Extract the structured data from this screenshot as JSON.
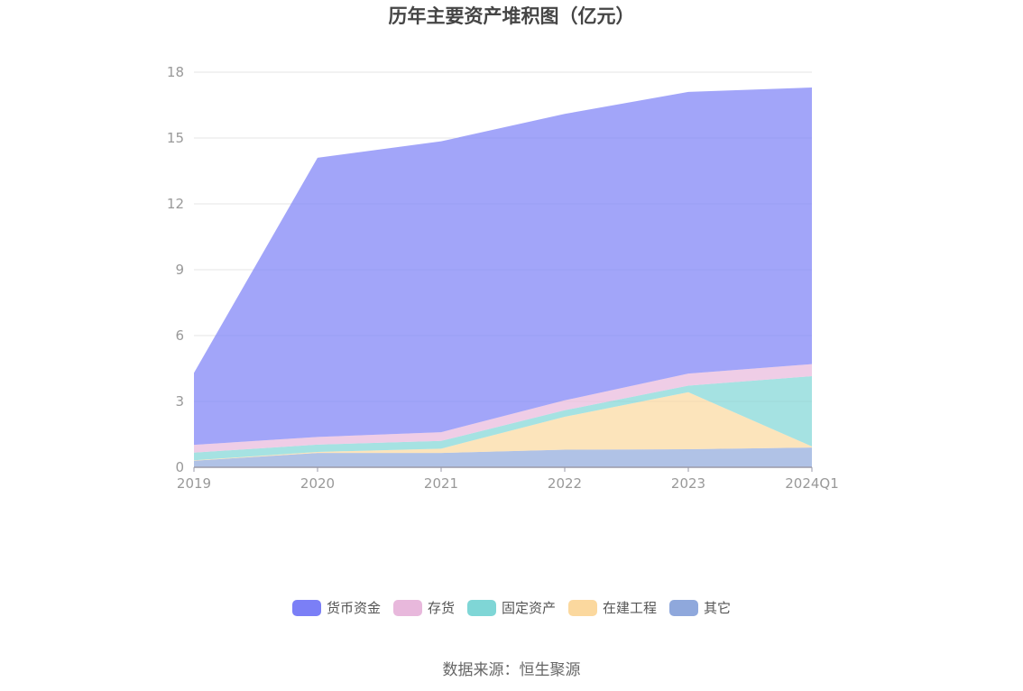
{
  "title": "历年主要资产堆积图（亿元）",
  "source": "数据来源：恒生聚源",
  "colors": {
    "货币资金": "#7b7ff6",
    "存货": "#e8b8dc",
    "固定资产": "#7fd6d6",
    "在建工程": "#fbd89e",
    "其它": "#8fa8dc"
  },
  "legend": [
    {
      "label": "货币资金",
      "color": "#7b7ff6"
    },
    {
      "label": "存货",
      "color": "#e8b8dc"
    },
    {
      "label": "固定资产",
      "color": "#7fd6d6"
    },
    {
      "label": "在建工程",
      "color": "#fbd89e"
    },
    {
      "label": "其它",
      "color": "#8fa8dc"
    }
  ],
  "chart_data": {
    "type": "area",
    "stacked": true,
    "title": "历年主要资产堆积图（亿元）",
    "categories": [
      "2019",
      "2020",
      "2021",
      "2022",
      "2023",
      "2024Q1"
    ],
    "ylim": [
      0,
      18
    ],
    "yticks": [
      0,
      3,
      6,
      9,
      12,
      15,
      18
    ],
    "grid": true,
    "legend_position": "bottom",
    "series": [
      {
        "name": "其它",
        "values": [
          0.3,
          0.65,
          0.65,
          0.8,
          0.82,
          0.9
        ]
      },
      {
        "name": "在建工程",
        "values": [
          0.02,
          0.05,
          0.2,
          1.5,
          2.6,
          0.05
        ]
      },
      {
        "name": "固定资产",
        "values": [
          0.35,
          0.33,
          0.35,
          0.3,
          0.3,
          3.2
        ]
      },
      {
        "name": "存货",
        "values": [
          0.35,
          0.35,
          0.4,
          0.45,
          0.55,
          0.55
        ]
      },
      {
        "name": "货币资金",
        "values": [
          3.28,
          12.72,
          13.25,
          13.05,
          12.83,
          12.6
        ]
      }
    ]
  }
}
